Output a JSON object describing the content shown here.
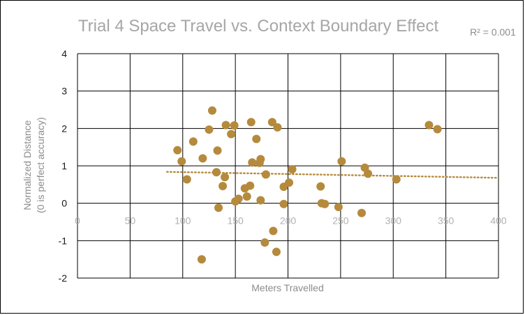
{
  "chart_data": {
    "type": "scatter",
    "title": "Trial 4 Space Travel vs. Context Boundary Effect",
    "annotation": "R² = 0.001",
    "xlabel": "Meters Travelled",
    "ylabel_lines": [
      "Normalized Distance",
      "(0 is perfect accuracy)"
    ],
    "xlim": [
      0,
      400
    ],
    "ylim": [
      -2,
      4
    ],
    "x_ticks": [
      0,
      50,
      100,
      150,
      200,
      250,
      300,
      350,
      400
    ],
    "y_ticks": [
      -2,
      -1,
      0,
      1,
      2,
      3,
      4
    ],
    "grid": true,
    "marker_color": "#b58a3c",
    "trendline": {
      "style": "dotted",
      "color": "#b58a3c",
      "x": [
        85,
        400
      ],
      "y": [
        0.84,
        0.68
      ]
    },
    "points": [
      {
        "x": 95,
        "y": 1.42
      },
      {
        "x": 99,
        "y": 1.12
      },
      {
        "x": 104,
        "y": 0.64
      },
      {
        "x": 110,
        "y": 1.65
      },
      {
        "x": 118,
        "y": -1.5
      },
      {
        "x": 119,
        "y": 1.2
      },
      {
        "x": 125,
        "y": 1.97
      },
      {
        "x": 128,
        "y": 2.48
      },
      {
        "x": 132,
        "y": 0.83
      },
      {
        "x": 133,
        "y": 1.41
      },
      {
        "x": 134,
        "y": -0.12
      },
      {
        "x": 138,
        "y": 0.46
      },
      {
        "x": 140,
        "y": 0.7
      },
      {
        "x": 141,
        "y": 2.09
      },
      {
        "x": 146,
        "y": 1.85
      },
      {
        "x": 149,
        "y": 2.08
      },
      {
        "x": 150,
        "y": 0.05
      },
      {
        "x": 153,
        "y": 0.12
      },
      {
        "x": 159,
        "y": 0.4
      },
      {
        "x": 161,
        "y": 0.18
      },
      {
        "x": 164,
        "y": 0.47
      },
      {
        "x": 165,
        "y": 2.17
      },
      {
        "x": 166,
        "y": 1.09
      },
      {
        "x": 170,
        "y": 1.72
      },
      {
        "x": 173,
        "y": 1.08
      },
      {
        "x": 174,
        "y": 1.18
      },
      {
        "x": 174,
        "y": 0.08
      },
      {
        "x": 178,
        "y": -1.05
      },
      {
        "x": 179,
        "y": 0.77
      },
      {
        "x": 185,
        "y": 2.17
      },
      {
        "x": 186,
        "y": -0.74
      },
      {
        "x": 189,
        "y": -1.3
      },
      {
        "x": 190,
        "y": 2.03
      },
      {
        "x": 196,
        "y": 0.44
      },
      {
        "x": 196,
        "y": -0.02
      },
      {
        "x": 201,
        "y": 0.55
      },
      {
        "x": 204,
        "y": 0.91
      },
      {
        "x": 231,
        "y": 0.45
      },
      {
        "x": 232,
        "y": 0.0
      },
      {
        "x": 235,
        "y": -0.02
      },
      {
        "x": 248,
        "y": -0.1
      },
      {
        "x": 251,
        "y": 1.12
      },
      {
        "x": 270,
        "y": -0.26
      },
      {
        "x": 273,
        "y": 0.95
      },
      {
        "x": 276,
        "y": 0.79
      },
      {
        "x": 303,
        "y": 0.64
      },
      {
        "x": 334,
        "y": 2.09
      },
      {
        "x": 342,
        "y": 1.98
      }
    ]
  }
}
